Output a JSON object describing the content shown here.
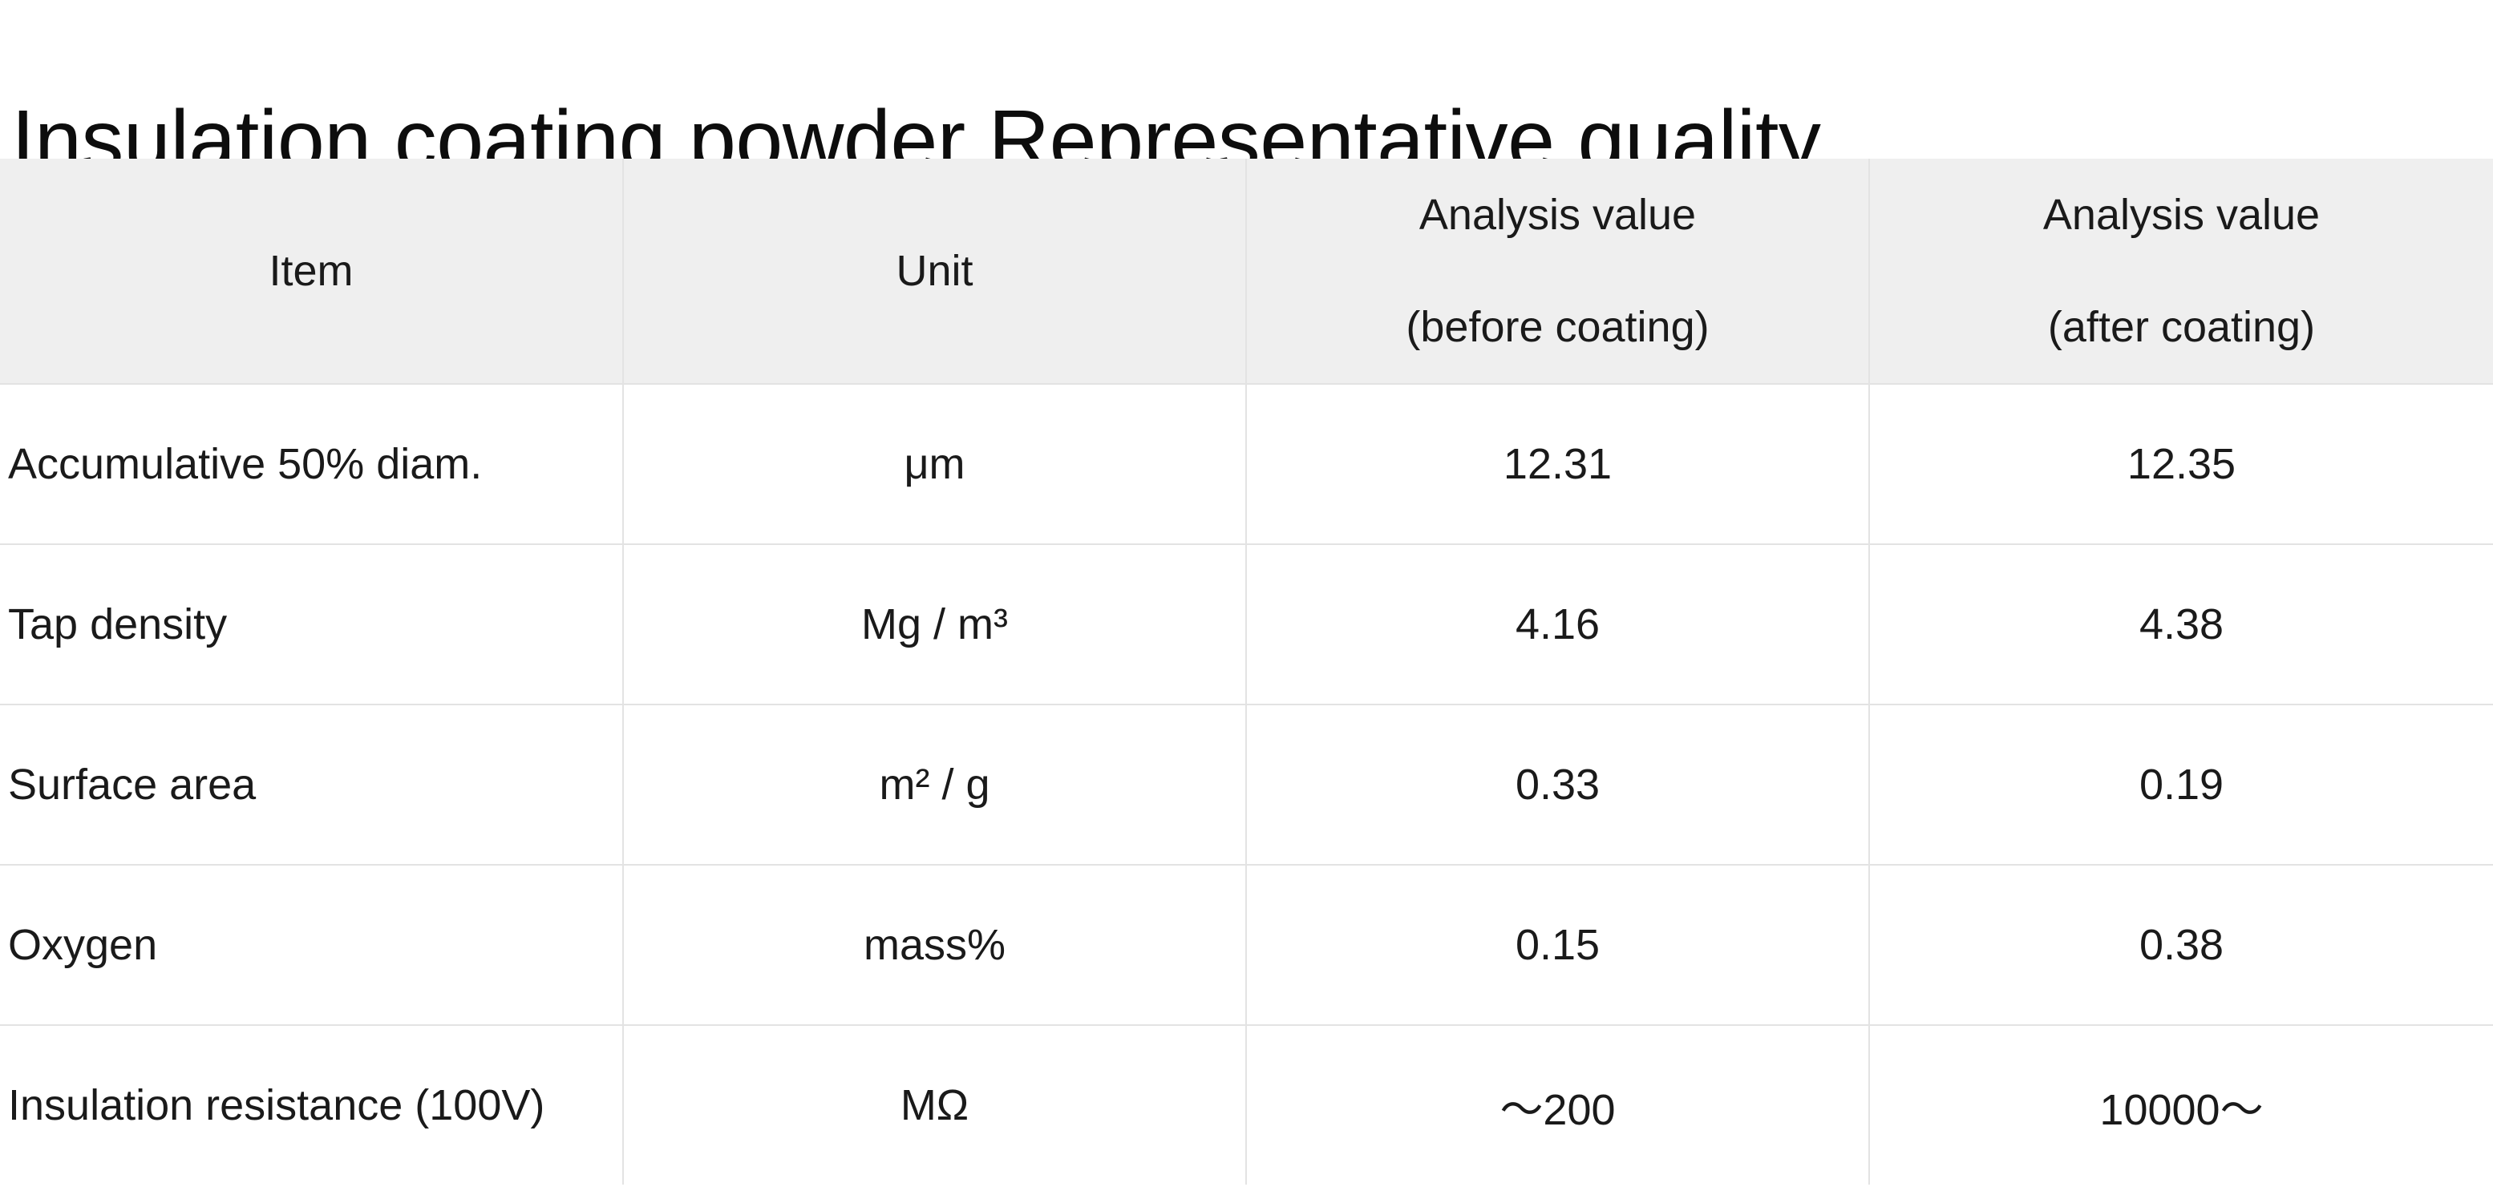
{
  "title": "Insulation coating powder Representative quality",
  "table": {
    "headers": [
      {
        "lines": [
          "Item"
        ]
      },
      {
        "lines": [
          "Unit"
        ]
      },
      {
        "lines": [
          "Analysis value",
          "(before coating)"
        ]
      },
      {
        "lines": [
          "Analysis value",
          "(after coating)"
        ]
      }
    ],
    "rows": [
      {
        "item": "Accumulative 50% diam.",
        "unit": "μm",
        "before": "12.31",
        "after": "12.35"
      },
      {
        "item": "Tap density",
        "unit": "Mg / m³",
        "before": "4.16",
        "after": "4.38"
      },
      {
        "item": "Surface area",
        "unit": "m² / g",
        "before": "0.33",
        "after": "0.19"
      },
      {
        "item": "Oxygen",
        "unit": "mass%",
        "before": "0.15",
        "after": "0.38"
      },
      {
        "item": "Insulation resistance (100V)",
        "unit": "MΩ",
        "before": "～200",
        "after": "10000～"
      }
    ]
  },
  "colors": {
    "header_background": "#efefef",
    "grid_line": "#e3e3e3",
    "text": "#1a1a1a"
  }
}
